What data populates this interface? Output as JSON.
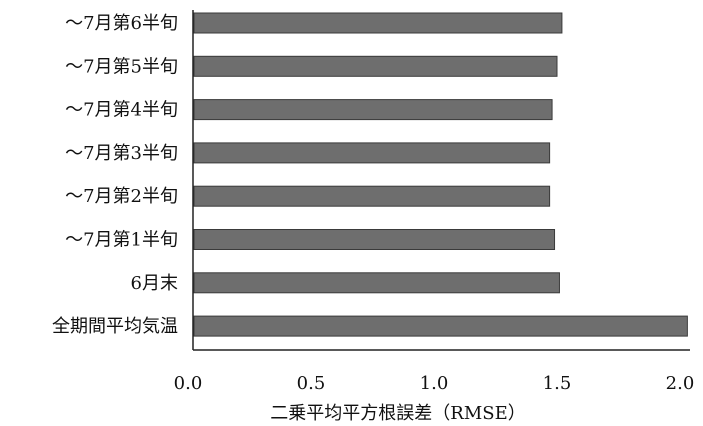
{
  "chart_data": {
    "type": "bar",
    "orientation": "horizontal",
    "categories": [
      "〜7月第6半旬",
      "〜7月第5半旬",
      "〜7月第4半旬",
      "〜7月第3半旬",
      "〜7月第2半旬",
      "〜7月第1半旬",
      "6月末",
      "全期間平均気温"
    ],
    "values": [
      1.52,
      1.5,
      1.48,
      1.47,
      1.47,
      1.49,
      1.51,
      2.03
    ],
    "xlabel": "二乗平均平方根誤差（RMSE）",
    "ylabel": "",
    "xlim": [
      0.0,
      2.0
    ],
    "xticks": [
      "0.0",
      "0.5",
      "1.0",
      "1.5",
      "2.0"
    ],
    "grid": false,
    "bar_color": "#6e6e6e",
    "bar_edge_color": "#3a3a3a"
  }
}
